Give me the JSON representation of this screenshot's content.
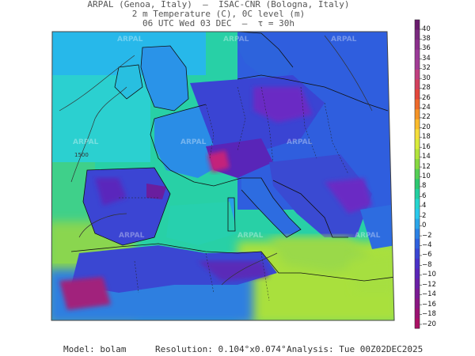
{
  "header": {
    "line1": "ARPAL (Genoa, Italy)  —  ISAC-CNR (Bologna, Italy)",
    "line2": "2 m Temperature (C), 0C level (m)",
    "line3": "06 UTC Wed 03 DEC  —  τ = 30h"
  },
  "map": {
    "contour_label": "1500",
    "watermark": "ARPAL"
  },
  "colorbar": {
    "ticks": [
      "40",
      "38",
      "36",
      "34",
      "32",
      "30",
      "28",
      "26",
      "24",
      "22",
      "20",
      "18",
      "16",
      "14",
      "12",
      "10",
      "8",
      "6",
      "4",
      "2",
      "0",
      "−2",
      "−4",
      "−6",
      "−8",
      "−10",
      "−12",
      "−14",
      "−16",
      "−18",
      "−20"
    ],
    "colors": [
      "#6a1b6e",
      "#7a2a7f",
      "#8b2f8c",
      "#9a3a98",
      "#a23c95",
      "#c03f80",
      "#d2405d",
      "#e4473b",
      "#ee6a2a",
      "#f59326",
      "#fbbb2b",
      "#f5de3a",
      "#d9ec3a",
      "#b2e43b",
      "#86d940",
      "#55cf55",
      "#2cc870",
      "#22cfa0",
      "#24d6cf",
      "#29c9ec",
      "#2aa6ea",
      "#2b82e6",
      "#2f61df",
      "#3a46d4",
      "#4a31c8",
      "#5a25b8",
      "#6a1fa6",
      "#7a1a93",
      "#8a1682",
      "#9a1272",
      "#ab1064"
    ]
  },
  "footer": {
    "model": "Model: bolam",
    "resolution": "Resolution: 0.104°x0.074°",
    "analysis": "Analysis: Tue 00Z02DEC2025"
  }
}
